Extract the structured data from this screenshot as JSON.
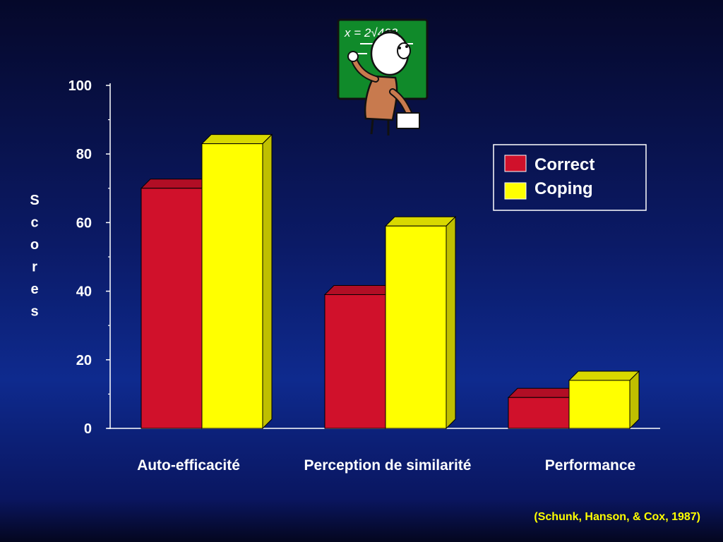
{
  "chart_data": {
    "type": "bar",
    "categories": [
      "Auto-efficacité",
      "Perception de similarité",
      "Performance"
    ],
    "series": [
      {
        "name": "Correct",
        "values": [
          70,
          39,
          9
        ]
      },
      {
        "name": "Coping",
        "values": [
          83,
          59,
          14
        ]
      }
    ],
    "ylabel": "Scores",
    "ylim": [
      0,
      100
    ],
    "yticks": [
      0,
      20,
      40,
      60,
      80,
      100
    ],
    "grid": false,
    "legend": "right",
    "style": "3d-bar"
  },
  "colors": {
    "correct": "#d0112b",
    "coping": "#ffff00",
    "axis": "#ffffff"
  },
  "illustration": "teacher-at-chalkboard",
  "chalkboard_text": "x = 2√423",
  "source": "(Schunk, Hanson, & Cox, 1987)"
}
